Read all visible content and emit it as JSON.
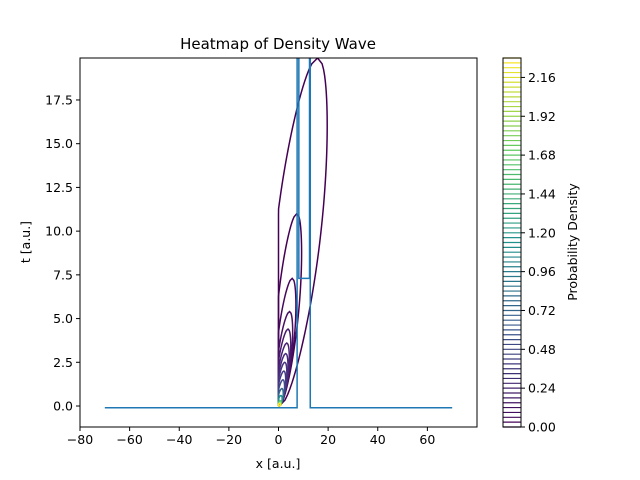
{
  "chart_data": {
    "type": "line",
    "title": "Heatmap of Density Wave",
    "xlabel": "x [a.u.]",
    "ylabel": "t [a.u.]",
    "xlim": [
      -80,
      80
    ],
    "ylim": [
      -1.2,
      19.9
    ],
    "xticks": [
      "−80",
      "−60",
      "−40",
      "−20",
      "0",
      "20",
      "40",
      "60"
    ],
    "xtick_values": [
      -80,
      -60,
      -40,
      -20,
      0,
      20,
      40,
      60
    ],
    "yticks": [
      "0.0",
      "2.5",
      "5.0",
      "7.5",
      "10.0",
      "12.5",
      "15.0",
      "17.5"
    ],
    "ytick_values": [
      0,
      2.5,
      5,
      7.5,
      10,
      12.5,
      15,
      17.5
    ],
    "grid": false,
    "series": [
      {
        "color": "#1f77b4",
        "x": [
          -70,
          7.5,
          7.5,
          8.2,
          8.2,
          12.5,
          12.5,
          12.8,
          12.8,
          70
        ],
        "y": [
          -0.1,
          -0.1,
          19.9,
          19.9,
          7.3,
          7.3,
          19.9,
          19.9,
          -0.1,
          -0.1
        ]
      }
    ],
    "contours": [
      {
        "level": 0.02,
        "color": "#440154",
        "apex_t": 19.9,
        "right_x": 25,
        "open": true
      },
      {
        "level": 0.05,
        "color": "#440154",
        "apex_t": 11.0,
        "right_x": 11.5
      },
      {
        "level": 0.08,
        "color": "#46085c",
        "apex_t": 7.3,
        "right_x": 8.5
      },
      {
        "level": 0.11,
        "color": "#471063",
        "apex_t": 5.4,
        "right_x": 6.8
      },
      {
        "level": 0.14,
        "color": "#481a6c",
        "apex_t": 4.4,
        "right_x": 5.8
      },
      {
        "level": 0.17,
        "color": "#482173",
        "apex_t": 3.6,
        "right_x": 5.0
      },
      {
        "level": 0.2,
        "color": "#472a7a",
        "apex_t": 3.0,
        "right_x": 4.3
      },
      {
        "level": 0.24,
        "color": "#46327e",
        "apex_t": 2.5,
        "right_x": 3.7
      },
      {
        "level": 0.3,
        "color": "#443a83",
        "apex_t": 2.0,
        "right_x": 3.1
      },
      {
        "level": 0.4,
        "color": "#3e4989",
        "apex_t": 1.5,
        "right_x": 2.5
      },
      {
        "level": 0.6,
        "color": "#31688e",
        "apex_t": 1.0,
        "right_x": 1.8
      },
      {
        "level": 1.0,
        "color": "#21918c",
        "apex_t": 0.6,
        "right_x": 1.2
      },
      {
        "level": 1.6,
        "color": "#5ec962",
        "apex_t": 0.3,
        "right_x": 0.7
      },
      {
        "level": 2.1,
        "color": "#fde725",
        "apex_t": 0.15,
        "right_x": 0.35
      }
    ],
    "colorbar": {
      "label": "Probability Density",
      "min": 0.0,
      "max": 2.28,
      "ticks": [
        "0.00",
        "0.24",
        "0.48",
        "0.72",
        "0.96",
        "1.20",
        "1.44",
        "1.68",
        "1.92",
        "2.16"
      ],
      "tick_values": [
        0,
        0.24,
        0.48,
        0.72,
        0.96,
        1.2,
        1.44,
        1.68,
        1.92,
        2.16
      ],
      "colormap": "viridis"
    }
  }
}
